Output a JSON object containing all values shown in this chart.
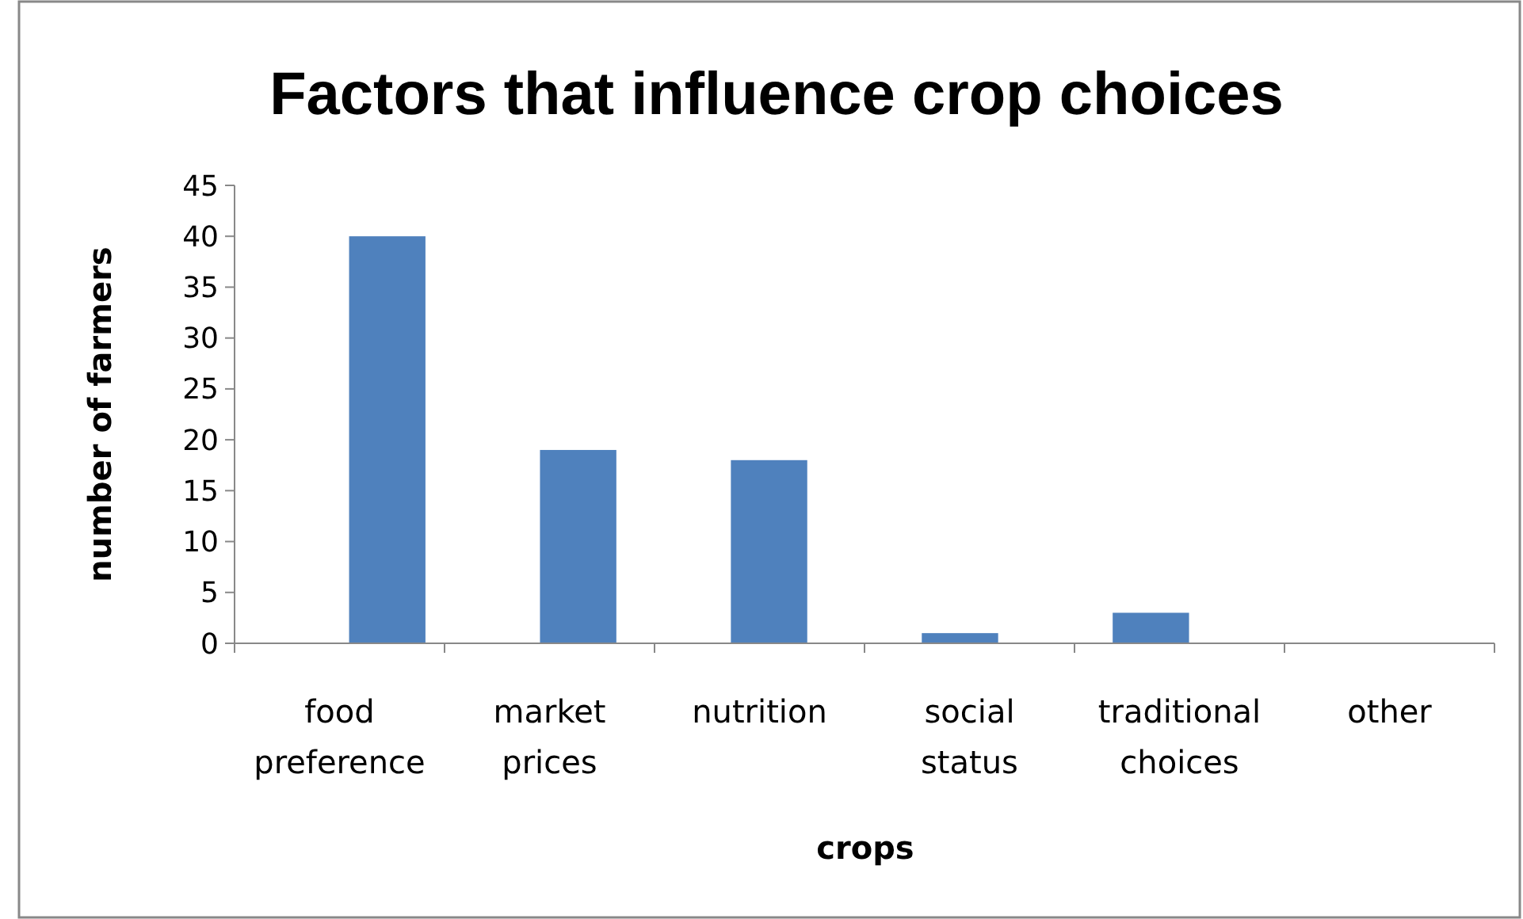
{
  "chart_data": {
    "type": "bar",
    "title": "Factors that influence crop choices",
    "xlabel": "crops",
    "ylabel": "number of farmers",
    "categories": [
      "food preference",
      "market prices",
      "nutrition",
      "social status",
      "traditional choices",
      "other"
    ],
    "values": [
      40,
      19,
      18,
      1,
      3,
      0
    ],
    "color": "#4f81bd",
    "ylim": [
      0,
      45
    ],
    "yticks": [
      0,
      5,
      10,
      15,
      20,
      25,
      30,
      35,
      40,
      45
    ]
  }
}
